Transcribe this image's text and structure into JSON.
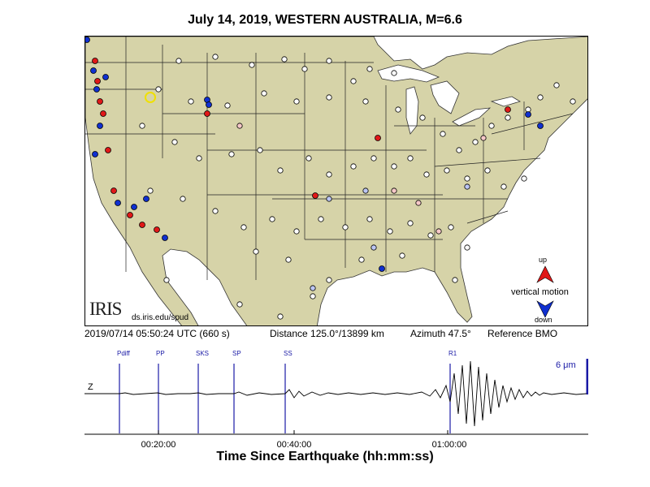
{
  "title": "July 14, 2019, WESTERN AUSTRALIA, M=6.6",
  "info": {
    "time": "2019/07/14 05:50:24 UTC (660 s)",
    "distance": "Distance 125.0°/13899 km",
    "azimuth": "Azimuth  47.5°",
    "reference": "Reference BMO"
  },
  "logo": {
    "text": "IRIS",
    "url": "ds.iris.edu/spud"
  },
  "legend": {
    "up": "up",
    "label": "vertical motion",
    "down": "down",
    "up_color": "#e01818",
    "down_color": "#1030d0"
  },
  "seismogram": {
    "component": "Z",
    "scale": "6 μm",
    "phases": [
      "Pdiff",
      "PP",
      "SKS",
      "SP",
      "SS",
      "R1"
    ],
    "time_ticks": [
      "00:20:00",
      "00:40:00",
      "01:00:00"
    ],
    "xlabel": "Time Since Earthquake (hh:mm:ss)"
  },
  "colors": {
    "land": "#d6d3a8",
    "water": "#ffffff",
    "station_red": "#e01818",
    "station_blue": "#1030d0",
    "trace_blue": "#1a1aa6",
    "reference": "#f0e000"
  }
}
